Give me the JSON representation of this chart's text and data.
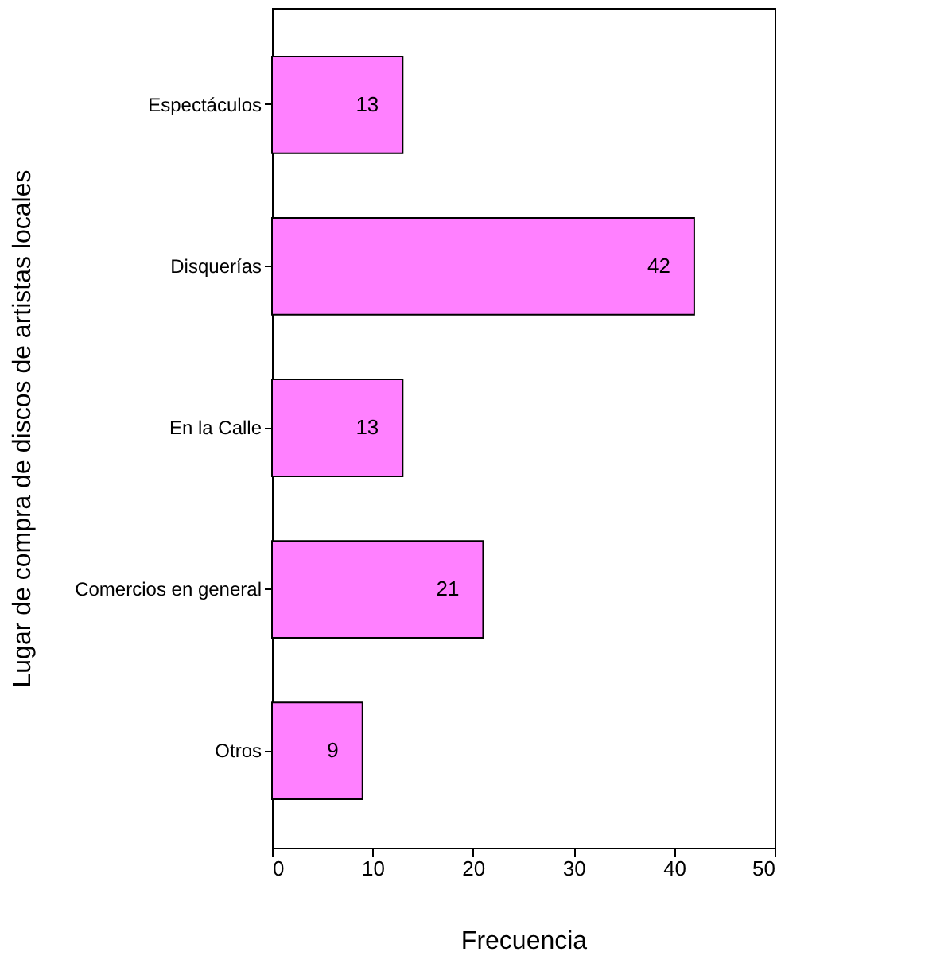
{
  "chart_data": {
    "type": "bar",
    "orientation": "horizontal",
    "xlabel": "Frecuencia",
    "ylabel": "Lugar de compra de discos de artistas locales",
    "categories": [
      "Espectáculos",
      "Disquerías",
      "En la Calle",
      "Comercios en general",
      "Otros"
    ],
    "values": [
      13,
      42,
      13,
      21,
      9
    ],
    "color": "#ff80ff",
    "xlim": [
      0,
      50
    ],
    "xticks": [
      0,
      10,
      20,
      30,
      40,
      50
    ],
    "data_labels": true,
    "grid": false
  }
}
